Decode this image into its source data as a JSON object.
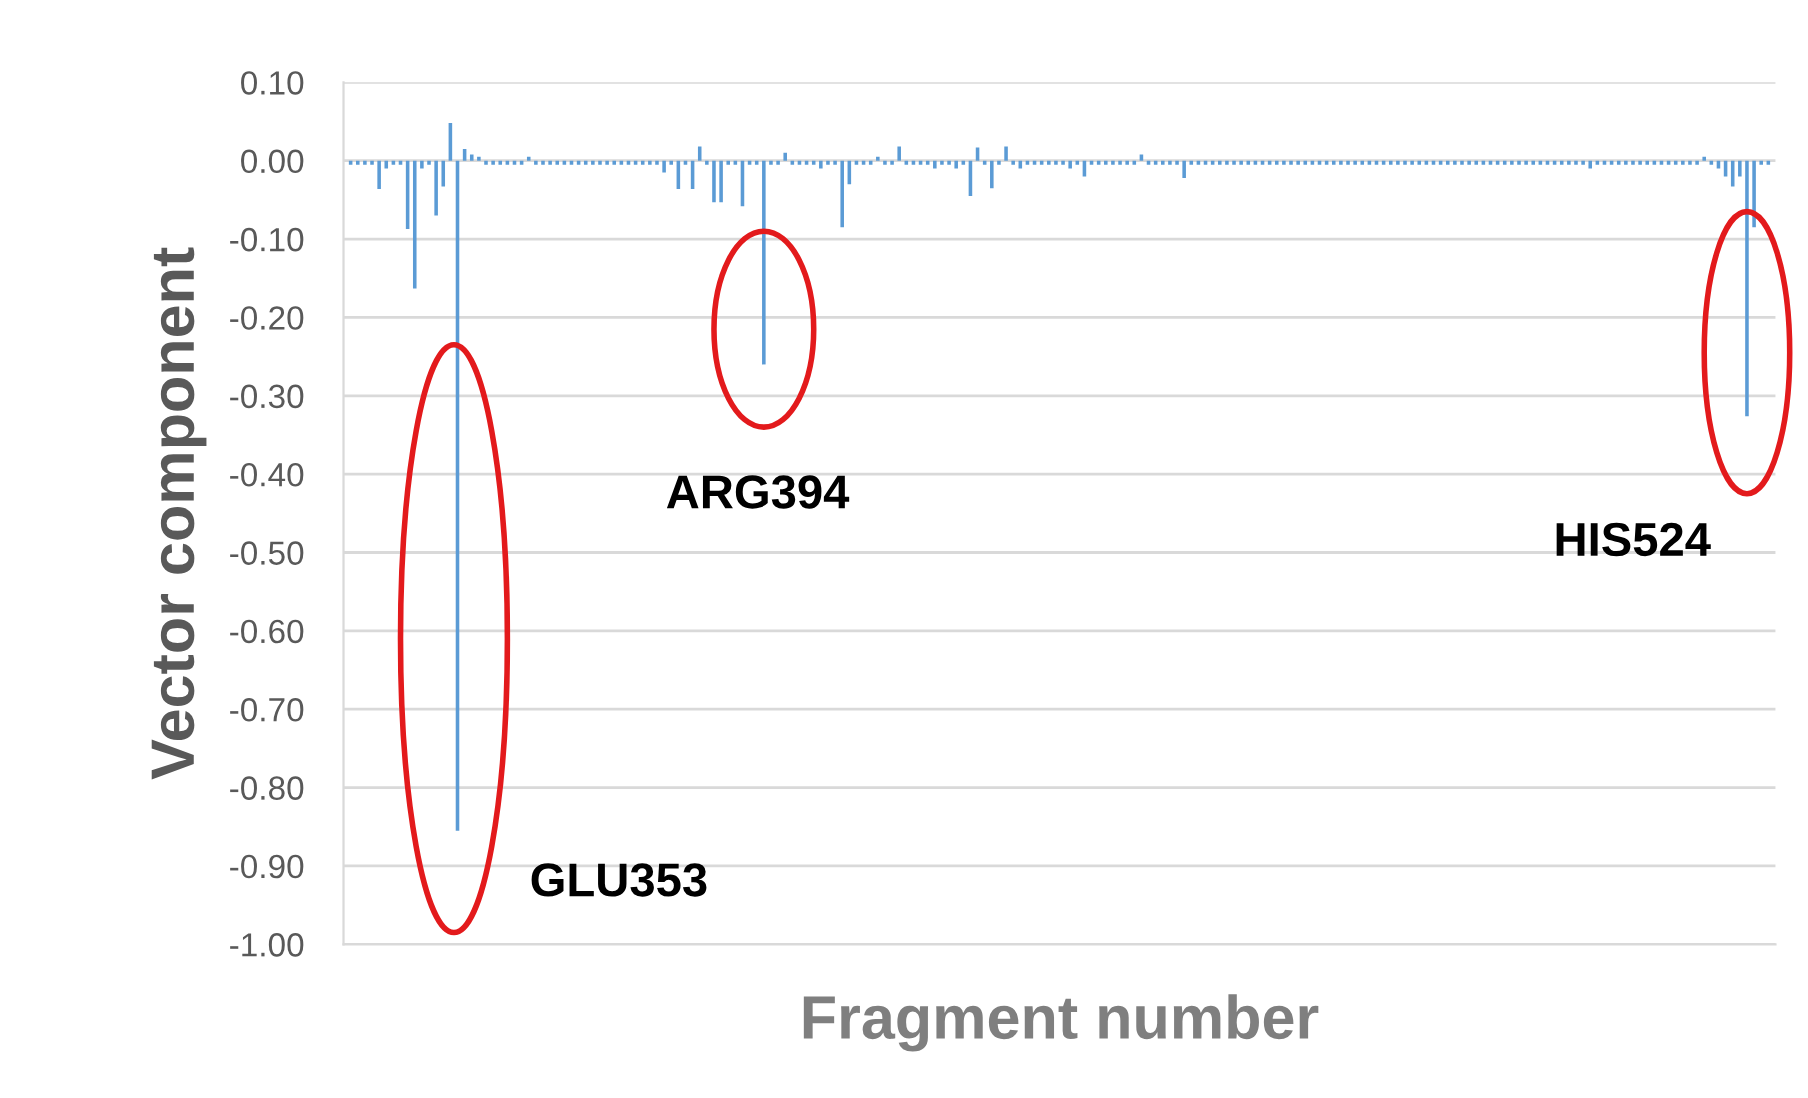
{
  "chart_data": {
    "type": "bar",
    "xlabel": "Fragment number",
    "ylabel": "Vector component",
    "categories": [
      null,
      null,
      null,
      null,
      null,
      null,
      null,
      null,
      null,
      null,
      null,
      null,
      null,
      null,
      null,
      null,
      null,
      null,
      null,
      null,
      null,
      null,
      null,
      null,
      null,
      null,
      null,
      null,
      null,
      null,
      null,
      null,
      null,
      null,
      null,
      null,
      null,
      null,
      null,
      null,
      null,
      null,
      null,
      null,
      null,
      null,
      null,
      null,
      null,
      null,
      null,
      null,
      null,
      null,
      null,
      null,
      null,
      null,
      null,
      null,
      null,
      null,
      null,
      null,
      null,
      null,
      null,
      null,
      null,
      null,
      null,
      null,
      null,
      null,
      null,
      null,
      null,
      null,
      null,
      null,
      null,
      null,
      null,
      null,
      null,
      null,
      null,
      null,
      null,
      null,
      null,
      null,
      null,
      null,
      null,
      null,
      null,
      null,
      null,
      null,
      null,
      null,
      null,
      null,
      null,
      null,
      null,
      null,
      null,
      null,
      null,
      null,
      null,
      null,
      null,
      null,
      null,
      null,
      null,
      null,
      null,
      null,
      null,
      null,
      null,
      null,
      null,
      null,
      null,
      null,
      null,
      null,
      null,
      null,
      null,
      null,
      null,
      null,
      null,
      null,
      null,
      null,
      null,
      null,
      null,
      null,
      null,
      null,
      null,
      null,
      null,
      null,
      null,
      null,
      null,
      null,
      null,
      null,
      null,
      null,
      null,
      null,
      null,
      null,
      null,
      null,
      null,
      null,
      null,
      null,
      null,
      null,
      null,
      null,
      null,
      null,
      null,
      null,
      null,
      null,
      null,
      null,
      null,
      null,
      null,
      null,
      null,
      null,
      null,
      null,
      null,
      null,
      null,
      null,
      null,
      null,
      null,
      null,
      null,
      null
    ],
    "values": [
      -0.005,
      -0.005,
      -0.005,
      -0.005,
      -0.036,
      -0.01,
      -0.005,
      -0.005,
      -0.087,
      -0.163,
      -0.01,
      -0.005,
      -0.07,
      -0.033,
      0.048,
      -0.855,
      0.015,
      0.008,
      0.005,
      -0.005,
      -0.005,
      -0.005,
      -0.005,
      -0.005,
      -0.005,
      0.005,
      -0.005,
      -0.005,
      -0.005,
      -0.005,
      -0.005,
      -0.005,
      -0.005,
      -0.005,
      -0.005,
      -0.005,
      -0.005,
      -0.005,
      -0.005,
      -0.005,
      -0.005,
      -0.005,
      -0.005,
      -0.005,
      -0.015,
      -0.005,
      -0.036,
      -0.005,
      -0.036,
      0.018,
      -0.005,
      -0.053,
      -0.053,
      -0.005,
      -0.005,
      -0.058,
      -0.005,
      -0.005,
      -0.26,
      -0.005,
      -0.005,
      0.01,
      -0.005,
      -0.005,
      -0.005,
      -0.005,
      -0.01,
      -0.005,
      -0.005,
      -0.085,
      -0.03,
      -0.005,
      -0.005,
      -0.005,
      0.005,
      -0.005,
      -0.005,
      0.018,
      -0.005,
      -0.005,
      -0.005,
      -0.005,
      -0.01,
      -0.005,
      -0.005,
      -0.01,
      -0.005,
      -0.045,
      0.017,
      -0.005,
      -0.035,
      -0.005,
      0.018,
      -0.005,
      -0.01,
      -0.005,
      -0.005,
      -0.005,
      -0.005,
      -0.005,
      -0.005,
      -0.01,
      -0.005,
      -0.02,
      -0.005,
      -0.005,
      -0.005,
      -0.005,
      -0.005,
      -0.005,
      -0.005,
      0.008,
      -0.005,
      -0.005,
      -0.005,
      -0.005,
      -0.005,
      -0.022,
      -0.005,
      -0.005,
      -0.005,
      -0.005,
      -0.005,
      -0.005,
      -0.005,
      -0.005,
      -0.005,
      -0.005,
      -0.005,
      -0.005,
      -0.005,
      -0.005,
      -0.005,
      -0.005,
      -0.005,
      -0.005,
      -0.005,
      -0.005,
      -0.005,
      -0.005,
      -0.005,
      -0.005,
      -0.005,
      -0.005,
      -0.005,
      -0.005,
      -0.005,
      -0.005,
      -0.005,
      -0.005,
      -0.005,
      -0.005,
      -0.005,
      -0.005,
      -0.005,
      -0.005,
      -0.005,
      -0.005,
      -0.005,
      -0.005,
      -0.005,
      -0.005,
      -0.005,
      -0.005,
      -0.005,
      -0.005,
      -0.005,
      -0.005,
      -0.005,
      -0.005,
      -0.005,
      -0.005,
      -0.005,
      -0.005,
      -0.01,
      -0.005,
      -0.005,
      -0.005,
      -0.005,
      -0.005,
      -0.005,
      -0.005,
      -0.005,
      -0.005,
      -0.005,
      -0.005,
      -0.005,
      -0.005,
      -0.005,
      -0.005,
      0.005,
      -0.005,
      -0.01,
      -0.02,
      -0.033,
      -0.02,
      -0.326,
      -0.085,
      -0.005,
      -0.005
    ],
    "color": "#5b9bd5",
    "ylim": [
      -1.0,
      0.1
    ],
    "yticks": [
      {
        "value": 0.1,
        "label": "0.10"
      },
      {
        "value": 0,
        "label": "0.00"
      },
      {
        "value": -0.1,
        "label": "-0.10"
      },
      {
        "value": -0.2,
        "label": "-0.20"
      },
      {
        "value": -0.3,
        "label": "-0.30"
      },
      {
        "value": -0.4,
        "label": "-0.40"
      },
      {
        "value": -0.5,
        "label": "-0.50"
      },
      {
        "value": -0.6,
        "label": "-0.60"
      },
      {
        "value": -0.7,
        "label": "-0.70"
      },
      {
        "value": -0.8,
        "label": "-0.80"
      },
      {
        "value": -0.9,
        "label": "-0.90"
      },
      {
        "value": -1.0,
        "label": "-1.00"
      }
    ],
    "grid": "y",
    "tick_labels": "y",
    "annotations": [
      "GLU353",
      "ARG394",
      "HIS524"
    ]
  }
}
